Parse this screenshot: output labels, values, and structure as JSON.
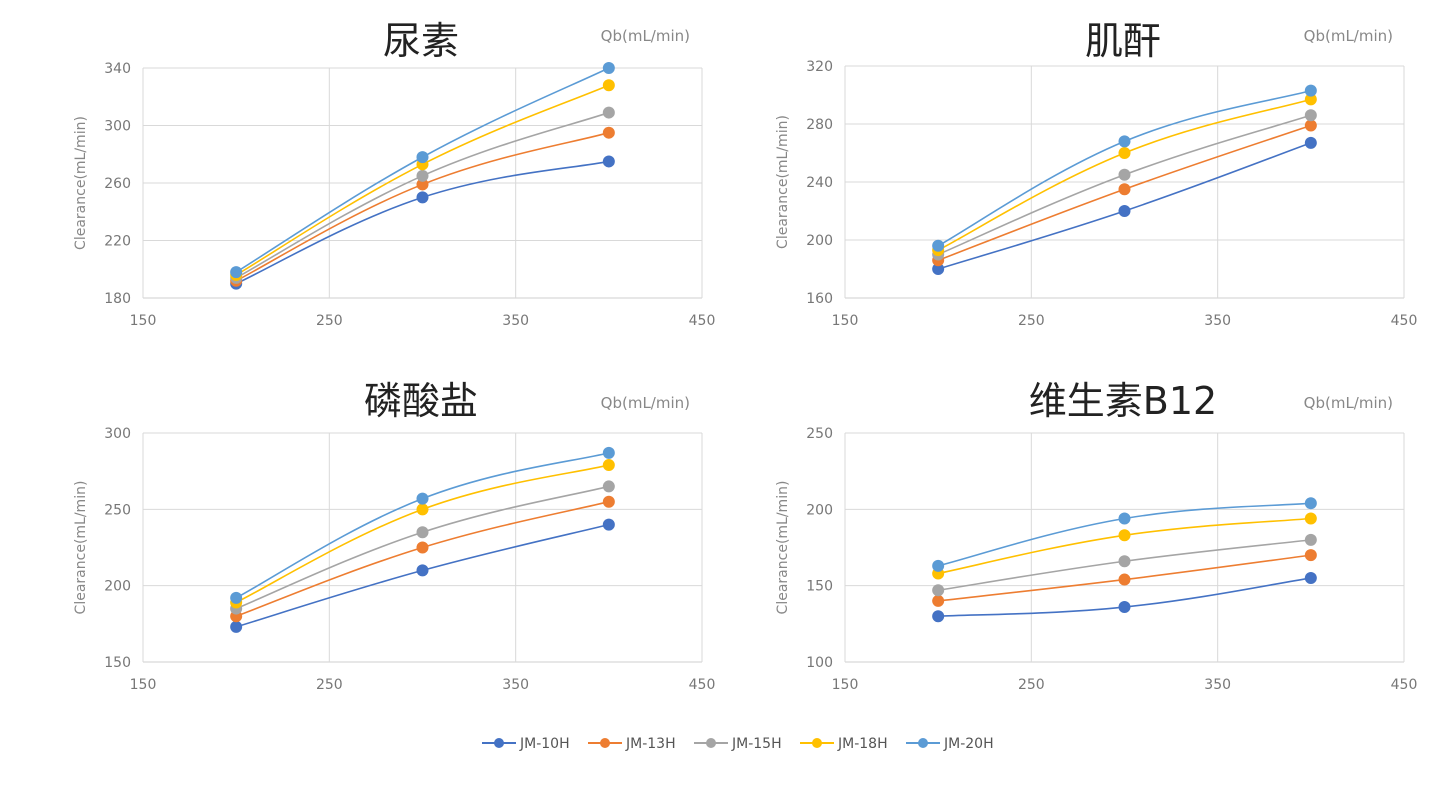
{
  "chart_data": [
    {
      "type": "line",
      "title": "尿素",
      "unit_label": "Qb(mL/min)",
      "ylabel": "Clearance(mL/min)",
      "xlim": [
        150,
        450
      ],
      "xticks": [
        150,
        250,
        350,
        450
      ],
      "ylim": [
        180,
        340
      ],
      "yticks": [
        180,
        220,
        260,
        300,
        340
      ],
      "x": [
        200,
        300,
        400
      ],
      "series": [
        {
          "name": "JM-10H",
          "values": [
            190,
            250,
            275
          ]
        },
        {
          "name": "JM-13H",
          "values": [
            192,
            259,
            295
          ]
        },
        {
          "name": "JM-15H",
          "values": [
            194,
            265,
            309
          ]
        },
        {
          "name": "JM-18H",
          "values": [
            196,
            273,
            328
          ]
        },
        {
          "name": "JM-20H",
          "values": [
            198,
            278,
            340
          ]
        }
      ]
    },
    {
      "type": "line",
      "title": "肌酐",
      "unit_label": "Qb(mL/min)",
      "ylabel": "Clearance(mL/min)",
      "xlim": [
        150,
        450
      ],
      "xticks": [
        150,
        250,
        350,
        450
      ],
      "ylim": [
        160,
        320
      ],
      "yticks": [
        160,
        200,
        240,
        280,
        320
      ],
      "x": [
        200,
        300,
        400
      ],
      "series": [
        {
          "name": "JM-10H",
          "values": [
            180,
            220,
            267
          ]
        },
        {
          "name": "JM-13H",
          "values": [
            186,
            235,
            279
          ]
        },
        {
          "name": "JM-15H",
          "values": [
            190,
            245,
            286
          ]
        },
        {
          "name": "JM-18H",
          "values": [
            193,
            260,
            297
          ]
        },
        {
          "name": "JM-20H",
          "values": [
            196,
            268,
            303
          ]
        }
      ]
    },
    {
      "type": "line",
      "title": "磷酸盐",
      "unit_label": "Qb(mL/min)",
      "ylabel": "Clearance(mL/min)",
      "xlim": [
        150,
        450
      ],
      "xticks": [
        150,
        250,
        350,
        450
      ],
      "ylim": [
        150,
        300
      ],
      "yticks": [
        150,
        200,
        250,
        300
      ],
      "x": [
        200,
        300,
        400
      ],
      "series": [
        {
          "name": "JM-10H",
          "values": [
            173,
            210,
            240
          ]
        },
        {
          "name": "JM-13H",
          "values": [
            180,
            225,
            255
          ]
        },
        {
          "name": "JM-15H",
          "values": [
            185,
            235,
            265
          ]
        },
        {
          "name": "JM-18H",
          "values": [
            189,
            250,
            279
          ]
        },
        {
          "name": "JM-20H",
          "values": [
            192,
            257,
            287
          ]
        }
      ]
    },
    {
      "type": "line",
      "title": "维生素B12",
      "unit_label": "Qb(mL/min)",
      "ylabel": "Clearance(mL/min)",
      "xlim": [
        150,
        450
      ],
      "xticks": [
        150,
        250,
        350,
        450
      ],
      "ylim": [
        100,
        250
      ],
      "yticks": [
        100,
        150,
        200,
        250
      ],
      "x": [
        200,
        300,
        400
      ],
      "series": [
        {
          "name": "JM-10H",
          "values": [
            130,
            136,
            155
          ]
        },
        {
          "name": "JM-13H",
          "values": [
            140,
            154,
            170
          ]
        },
        {
          "name": "JM-15H",
          "values": [
            147,
            166,
            180
          ]
        },
        {
          "name": "JM-18H",
          "values": [
            158,
            183,
            194
          ]
        },
        {
          "name": "JM-20H",
          "values": [
            163,
            194,
            204
          ]
        }
      ]
    }
  ],
  "legend": {
    "placement": "bottom-center",
    "items": [
      "JM-10H",
      "JM-13H",
      "JM-15H",
      "JM-18H",
      "JM-20H"
    ]
  },
  "colors": {
    "JM-10H": "#4472c4",
    "JM-13H": "#ed7d31",
    "JM-15H": "#a5a5a5",
    "JM-18H": "#ffc000",
    "JM-20H": "#5b9bd5"
  }
}
